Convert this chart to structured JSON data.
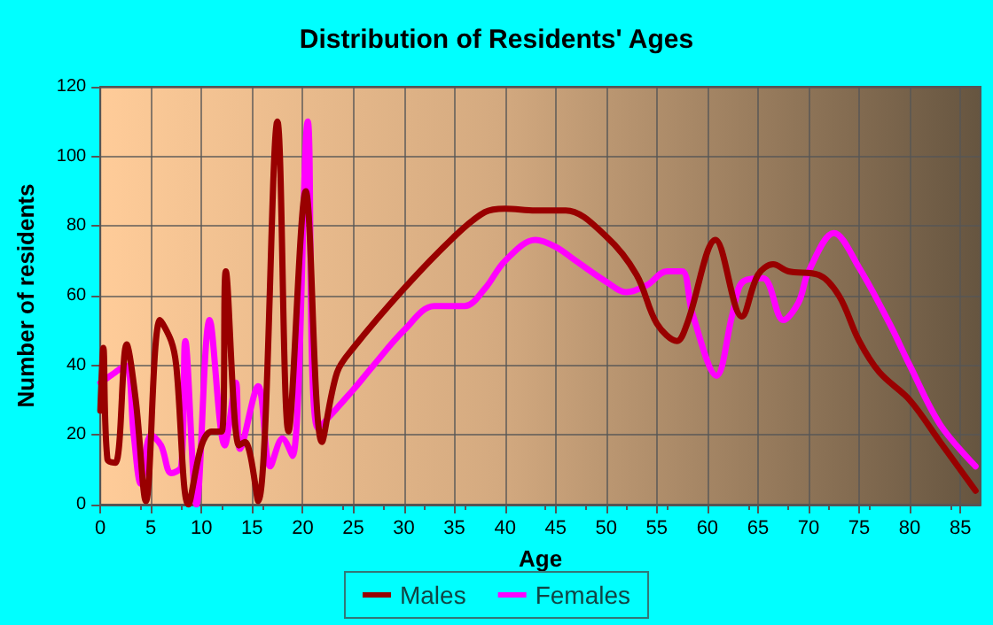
{
  "chart_data": {
    "type": "line",
    "title": "Distribution of Residents' Ages",
    "xlabel": "Age",
    "ylabel": "Number of residents",
    "xlim": [
      0,
      87
    ],
    "xticks": [
      0,
      5,
      10,
      15,
      20,
      25,
      30,
      35,
      40,
      45,
      50,
      55,
      60,
      65,
      70,
      75,
      80,
      85
    ],
    "ylim": [
      0,
      120
    ],
    "yticks": [
      0,
      20,
      40,
      60,
      80,
      100,
      120
    ],
    "grid": true,
    "legend": "bottom",
    "marker": "none",
    "line_style": "solid",
    "series": [
      {
        "name": "Males",
        "color": "#990000",
        "x": [
          0,
          0.3,
          0.7,
          1.5,
          2.6,
          3.5,
          4.5,
          5.9,
          7,
          7.5,
          8.7,
          10,
          11,
          12,
          12.4,
          13.7,
          14.3,
          15.6,
          17.5,
          18.6,
          20.3,
          21.9,
          23.4,
          25,
          30,
          35,
          38,
          40,
          43,
          46,
          50,
          53,
          55,
          57,
          58,
          60.8,
          63.4,
          65,
          66.5,
          68,
          71,
          73,
          75,
          77,
          80,
          83,
          86.5
        ],
        "values": [
          27,
          45,
          13,
          12,
          46,
          30,
          1,
          53,
          47,
          40,
          0,
          17,
          21,
          21,
          67,
          17,
          18,
          1,
          110,
          21,
          90,
          18,
          38,
          45,
          62,
          77,
          84,
          85,
          84.5,
          84.5,
          77,
          66,
          52,
          47,
          52,
          76,
          54,
          66,
          69,
          67,
          66,
          60,
          47,
          38,
          30,
          18,
          4
        ]
      },
      {
        "name": "Females",
        "color": "#ff00ff",
        "x": [
          0,
          1,
          2.5,
          3.3,
          4,
          5,
          6,
          7,
          8,
          8.4,
          9.5,
          10.8,
          12.3,
          13.4,
          13.8,
          15.6,
          16.8,
          18,
          19,
          20.5,
          21.5,
          25,
          27,
          30,
          33,
          36,
          38,
          40,
          43,
          45,
          47,
          50,
          52,
          54,
          56,
          57.5,
          58.5,
          60.9,
          62.5,
          63.5,
          65.5,
          67.5,
          69,
          70,
          72.5,
          75,
          78,
          80,
          83,
          86.5
        ],
        "values": [
          35,
          37,
          40,
          20,
          6,
          20,
          17,
          9,
          11,
          47,
          0,
          53,
          17,
          35,
          16,
          34,
          11,
          19,
          14,
          110,
          22,
          33,
          40,
          50,
          57,
          57,
          62,
          70,
          76,
          74,
          70,
          64,
          61,
          63,
          67,
          67,
          55,
          37,
          55,
          64,
          65,
          53,
          58,
          67,
          78,
          68,
          52,
          40,
          23,
          11
        ]
      }
    ]
  }
}
